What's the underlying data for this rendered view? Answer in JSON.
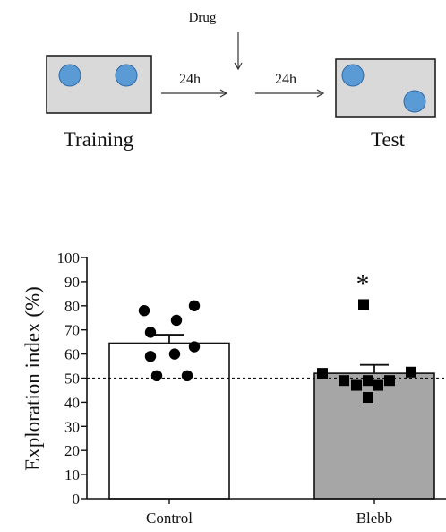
{
  "schematic": {
    "drug_label": "Drug",
    "interval1": "24h",
    "interval2": "24h",
    "training_label": "Training",
    "test_label": "Test",
    "object_color": "#5b9bd5",
    "box_fill": "#d9d9d9"
  },
  "chart_data": {
    "type": "bar",
    "ylabel": "Exploration index (%)",
    "ylim": [
      0,
      100
    ],
    "yticks": [
      0,
      10,
      20,
      30,
      40,
      50,
      60,
      70,
      80,
      90,
      100
    ],
    "categories": [
      "Control",
      "Blebb"
    ],
    "means": [
      64.5,
      52
    ],
    "sem": [
      3.5,
      3.5
    ],
    "bar_colors": [
      "#ffffff",
      "#a6a6a6"
    ],
    "reference_line": 50,
    "significance": [
      "",
      "*"
    ],
    "points": [
      {
        "group": "Control",
        "marker": "circle",
        "values": [
          78,
          80,
          74,
          69,
          63,
          59,
          60,
          51,
          51
        ]
      },
      {
        "group": "Blebb",
        "marker": "square",
        "values": [
          80.5,
          52,
          49,
          47,
          49,
          47,
          49,
          52.5,
          42
        ]
      }
    ]
  }
}
